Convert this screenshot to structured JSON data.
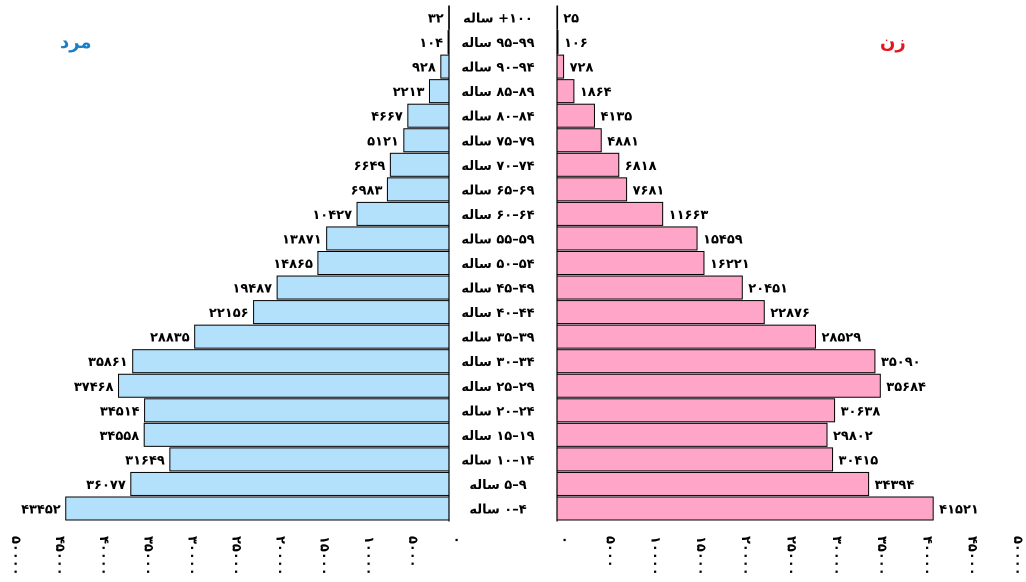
{
  "chart_data": {
    "type": "bar",
    "orientation": "horizontal",
    "layout": "population-pyramid",
    "panels": {
      "male": {
        "label": "مرد",
        "color": "#1a7fc8",
        "bar_color": "#b3e0fb"
      },
      "female": {
        "label": "زن",
        "color": "#e4151f",
        "bar_color": "#ffa6c8"
      }
    },
    "categories": [
      "۱۰۰+ ساله",
      "۹۹–۹۵ ساله",
      "۹۴–۹۰ ساله",
      "۸۹–۸۵ ساله",
      "۸۴–۸۰ ساله",
      "۷۹–۷۵ ساله",
      "۷۴–۷۰ ساله",
      "۶۹–۶۵ ساله",
      "۶۴–۶۰ ساله",
      "۵۹–۵۵ ساله",
      "۵۴–۵۰ ساله",
      "۴۹–۴۵ ساله",
      "۴۴–۴۰ ساله",
      "۳۹–۳۵ ساله",
      "۳۴–۳۰ ساله",
      "۲۹–۲۵ ساله",
      "۲۴–۲۰ ساله",
      "۱۹–۱۵ ساله",
      "۱۴–۱۰ ساله",
      "۹–۵ ساله",
      "۴–۰ ساله"
    ],
    "series": [
      {
        "name": "مرد",
        "values": [
          32,
          104,
          928,
          2213,
          4667,
          5121,
          6649,
          6983,
          10427,
          13871,
          14865,
          19487,
          22156,
          28835,
          35861,
          37468,
          34514,
          34558,
          31649,
          36077,
          43452
        ],
        "labels": [
          "۳۲",
          "۱۰۴",
          "۹۲۸",
          "۲۲۱۳",
          "۴۶۶۷",
          "۵۱۲۱",
          "۶۶۴۹",
          "۶۹۸۳",
          "۱۰۴۲۷",
          "۱۳۸۷۱",
          "۱۴۸۶۵",
          "۱۹۴۸۷",
          "۲۲۱۵۶",
          "۲۸۸۳۵",
          "۳۵۸۶۱",
          "۳۷۴۶۸",
          "۳۴۵۱۴",
          "۳۴۵۵۸",
          "۳۱۶۴۹",
          "۳۶۰۷۷",
          "۴۳۴۵۲"
        ]
      },
      {
        "name": "زن",
        "values": [
          25,
          106,
          728,
          1864,
          4135,
          4881,
          6818,
          7681,
          11663,
          15459,
          16221,
          20451,
          22876,
          28529,
          35090,
          35684,
          30638,
          29802,
          30415,
          34394,
          41521
        ],
        "labels": [
          "۲۵",
          "۱۰۶",
          "۷۲۸",
          "۱۸۶۴",
          "۴۱۳۵",
          "۴۸۸۱",
          "۶۸۱۸",
          "۷۶۸۱",
          "۱۱۶۶۳",
          "۱۵۴۵۹",
          "۱۶۲۲۱",
          "۲۰۴۵۱",
          "۲۲۸۷۶",
          "۲۸۵۲۹",
          "۳۵۰۹۰",
          "۳۵۶۸۴",
          "۳۰۶۳۸",
          "۲۹۸۰۲",
          "۳۰۴۱۵",
          "۳۴۳۹۴",
          "۴۱۵۲۱"
        ]
      }
    ],
    "xlim": [
      0,
      50000
    ],
    "ticks": [
      0,
      5000,
      10000,
      15000,
      20000,
      25000,
      30000,
      35000,
      40000,
      45000,
      50000
    ],
    "tick_labels": [
      "۰",
      "۵۰۰۰",
      "۱۰۰۰۰",
      "۱۵۰۰۰",
      "۲۰۰۰۰",
      "۲۵۰۰۰",
      "۳۰۰۰۰",
      "۳۵۰۰۰",
      "۴۰۰۰۰",
      "۴۵۰۰۰",
      "۵۰۰۰۰"
    ],
    "grid": false,
    "legend": "none"
  }
}
